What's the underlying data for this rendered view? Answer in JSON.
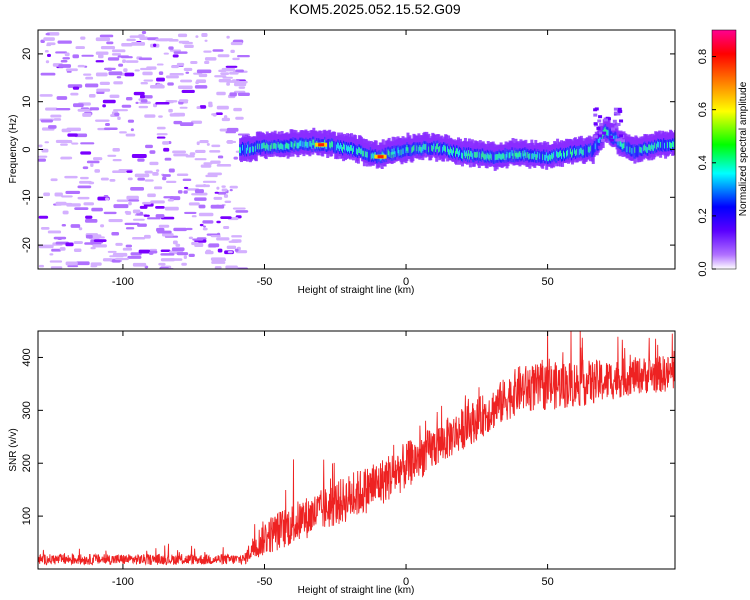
{
  "title": "KOM5.2025.052.15.52.G09",
  "chart_data": [
    {
      "type": "heatmap",
      "xlabel": "Height of straight line (km)",
      "ylabel": "Frequency (Hz)",
      "xlim": [
        -130,
        95
      ],
      "ylim": [
        -25,
        25
      ],
      "xticks": [
        -100,
        -50,
        0,
        50
      ],
      "yticks": [
        -20,
        -10,
        0,
        10,
        20
      ],
      "colorbar": {
        "label": "Normalized spectral amplitude",
        "range": [
          0,
          0.9
        ],
        "ticks": [
          "0.0",
          "0.2",
          "0.4",
          "0.6",
          "0.8"
        ],
        "colors": [
          "#ffffff",
          "#7b00ff",
          "#0000ff",
          "#00ffff",
          "#00ff00",
          "#ffff00",
          "#ff8000",
          "#ff0000",
          "#ff0080"
        ]
      },
      "ridge": {
        "description_free_values": true,
        "x": [
          -59,
          -50,
          -40,
          -30,
          -20,
          -10,
          0,
          10,
          20,
          30,
          40,
          50,
          60,
          66,
          70,
          75,
          80,
          90,
          95
        ],
        "y": [
          0,
          0.5,
          1,
          1.2,
          0,
          -1.5,
          0,
          0.5,
          -1,
          -1.5,
          -1,
          -1.5,
          -0.5,
          0,
          4,
          1.5,
          -0.5,
          1,
          1
        ],
        "peak_x": [
          -30,
          -9
        ],
        "peak_y": [
          1,
          -1.5
        ]
      }
    },
    {
      "type": "line",
      "xlabel": "Height of straight line (km)",
      "ylabel": "SNR (v/v)",
      "xlim": [
        -130,
        95
      ],
      "ylim": [
        0,
        450
      ],
      "xticks": [
        -100,
        -50,
        0,
        50
      ],
      "yticks": [
        100,
        200,
        300,
        400
      ],
      "series": [
        {
          "color": "#ee2222",
          "x": [
            -130,
            -100,
            -70,
            -57,
            -55,
            -50,
            -40,
            -30,
            -20,
            -10,
            0,
            10,
            20,
            30,
            40,
            50,
            60,
            70,
            80,
            95
          ],
          "y": [
            18,
            18,
            18,
            18,
            35,
            60,
            85,
            110,
            135,
            160,
            195,
            230,
            265,
            300,
            340,
            345,
            350,
            355,
            365,
            370
          ],
          "noise_amp": [
            10,
            10,
            10,
            10,
            20,
            35,
            40,
            40,
            45,
            45,
            45,
            40,
            40,
            40,
            45,
            45,
            45,
            40,
            35,
            35
          ]
        }
      ]
    }
  ]
}
